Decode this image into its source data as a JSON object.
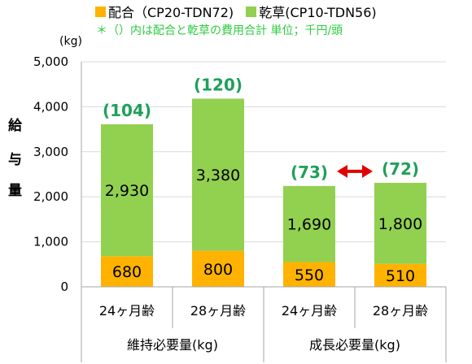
{
  "legend": [
    {
      "label": "配合（CP20-TDN72)",
      "color": "#FFB300"
    },
    {
      "label": "乾草(CP10-TDN56)",
      "color": "#92D050"
    }
  ],
  "note": "＊（）内は配合と乾草の費用合計  単位；千円/頭",
  "ylabel_chars": [
    "給",
    "与",
    "量"
  ],
  "chart_data": {
    "type": "bar",
    "stacked": true,
    "unit_label": "(kg)",
    "categories": [
      "24ヶ月齢",
      "28ヶ月齢",
      "24ヶ月齢",
      "28ヶ月齢"
    ],
    "groups": [
      {
        "label": "維持必要量(kg)",
        "categories": [
          "24ヶ月齢",
          "28ヶ月齢"
        ]
      },
      {
        "label": "成長必要量(kg)",
        "categories": [
          "24ヶ月齢",
          "28ヶ月齢"
        ]
      }
    ],
    "series": [
      {
        "name": "配合（CP20-TDN72)",
        "values": [
          680,
          800,
          550,
          510
        ],
        "labels": [
          "680",
          "800",
          "550",
          "510"
        ],
        "color": "#FFB300"
      },
      {
        "name": "乾草(CP10-TDN56)",
        "values": [
          2930,
          3380,
          1690,
          1800
        ],
        "labels": [
          "2,930",
          "3,380",
          "1,690",
          "1,800"
        ],
        "color": "#92D050"
      }
    ],
    "cost_labels": [
      "(104)",
      "(120)",
      "(73)",
      "(72)"
    ],
    "cost_label_color": "#1FA05A",
    "arrow_color": "#E00000",
    "ylim": [
      0,
      5000
    ],
    "yticks": [
      0,
      1000,
      2000,
      3000,
      4000,
      5000
    ],
    "ytick_labels": [
      "0",
      "1,000",
      "2,000",
      "3,000",
      "4,000",
      "5,000"
    ],
    "grid": true
  }
}
